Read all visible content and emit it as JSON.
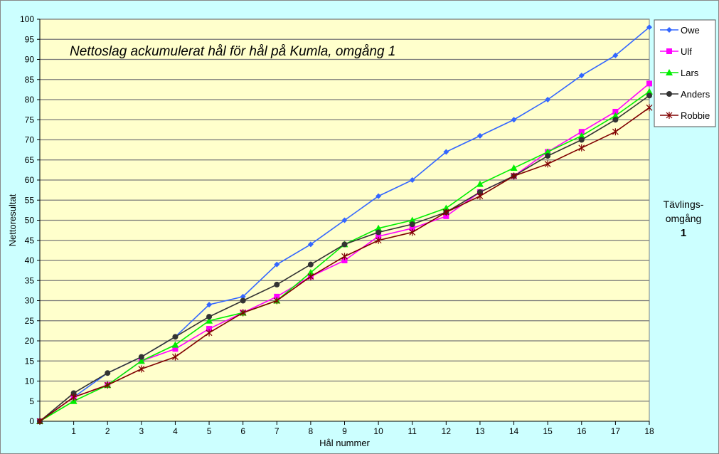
{
  "chart_data": {
    "type": "line",
    "title": "Nettoslag ackumulerat hål för hål på Kumla, omgång 1",
    "xlabel": "Hål nummer",
    "ylabel": "Nettoresultat",
    "x": [
      0,
      1,
      2,
      3,
      4,
      5,
      6,
      7,
      8,
      9,
      10,
      11,
      12,
      13,
      14,
      15,
      16,
      17,
      18
    ],
    "xticks": [
      1,
      2,
      3,
      4,
      5,
      6,
      7,
      8,
      9,
      10,
      11,
      12,
      13,
      14,
      15,
      16,
      17,
      18
    ],
    "ylim": [
      0,
      100
    ],
    "yticks": [
      0,
      5,
      10,
      15,
      20,
      25,
      30,
      35,
      40,
      45,
      50,
      55,
      60,
      65,
      70,
      75,
      80,
      85,
      90,
      95,
      100
    ],
    "xlim": [
      0,
      18
    ],
    "grid": "horizontal",
    "legend_position": "top-right",
    "series": [
      {
        "name": "Owe",
        "color": "#3366ff",
        "marker": "diamond",
        "values": [
          0,
          6,
          12,
          16,
          21,
          29,
          31,
          39,
          44,
          50,
          56,
          60,
          67,
          71,
          75,
          80,
          86,
          91,
          98
        ]
      },
      {
        "name": "Ulf",
        "color": "#ff00ff",
        "marker": "square",
        "values": [
          0,
          6,
          9,
          15,
          18,
          23,
          27,
          31,
          36,
          40,
          46,
          48,
          51,
          57,
          61,
          67,
          72,
          77,
          84
        ]
      },
      {
        "name": "Lars",
        "color": "#00ee00",
        "marker": "triangle",
        "values": [
          0,
          5,
          9,
          15,
          19,
          25,
          27,
          30,
          37,
          44,
          48,
          50,
          53,
          59,
          63,
          67,
          71,
          76,
          82
        ]
      },
      {
        "name": "Anders",
        "color": "#333333",
        "marker": "circle",
        "values": [
          0,
          7,
          12,
          16,
          21,
          26,
          30,
          34,
          39,
          44,
          47,
          49,
          52,
          57,
          61,
          66,
          70,
          75,
          81
        ]
      },
      {
        "name": "Robbie",
        "color": "#800000",
        "marker": "star",
        "values": [
          0,
          6,
          9,
          13,
          16,
          22,
          27,
          30,
          36,
          41,
          45,
          47,
          52,
          56,
          61,
          64,
          68,
          72,
          78
        ]
      }
    ],
    "plot_background": "#ffffcc",
    "chart_background": "#ccffff"
  },
  "side_note": {
    "line1": "Tävlings-",
    "line2": "omgång",
    "line3": "1"
  }
}
